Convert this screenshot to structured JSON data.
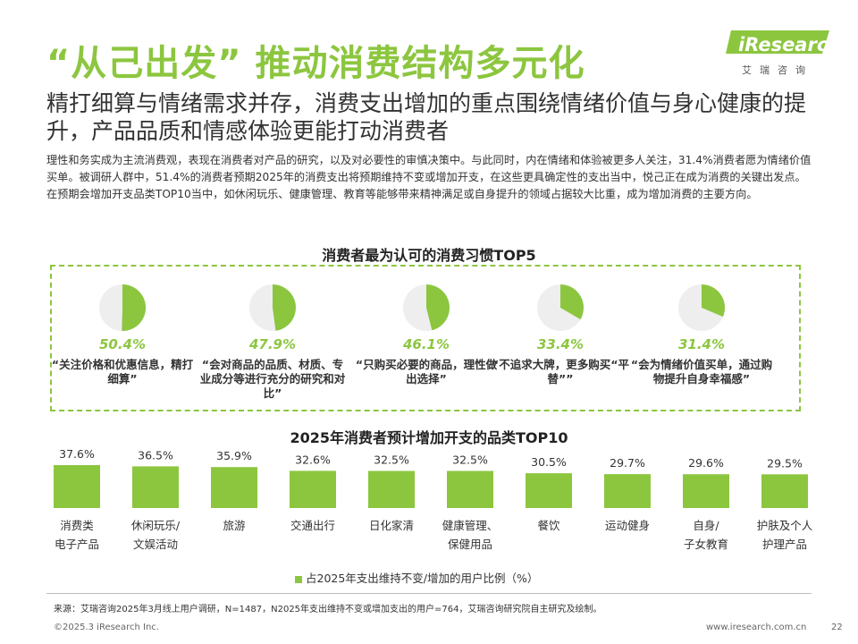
{
  "header": {
    "title": "“从己出发”  推动消费结构多元化",
    "logo_text": "iResearch",
    "logo_sub": "艾瑞咨询"
  },
  "subtitle": "精打细算与情绪需求并存，消费支出增加的重点围绕情绪价值与身心健康的提升，产品品质和情感体验更能打动消费者",
  "paragraph": "理性和务实成为主流消费观，表现在消费者对产品的研究，以及对必要性的审慎决策中。与此同时，内在情绪和体验被更多人关注，31.4%消费者愿为情绪价值买单。被调研人群中，51.4%的消费者预期2025年的消费支出将预期维持不变或增加开支，在这些更具确定性的支出当中，悦己正在成为消费的关键出发点。在预期会增加开支品类TOP10当中，如休闲玩乐、健康管理、教育等能够带来精神满足或自身提升的领域占据较大比重，成为增加消费的主要方向。",
  "habits": {
    "title": "消费者最为认可的消费习惯TOP5",
    "items": [
      {
        "value": 50.4,
        "pct": "50.4%",
        "label": "“关注价格和优惠信息，精打细算”"
      },
      {
        "value": 47.9,
        "pct": "47.9%",
        "label": "“会对商品的品质、材质、专业成分等进行充分的研究和对比”"
      },
      {
        "value": 46.1,
        "pct": "46.1%",
        "label": "“只购买必要的商品，理性做出选择”"
      },
      {
        "value": 33.4,
        "pct": "33.4%",
        "label": "“不追求大牌，更多购买“平替””"
      },
      {
        "value": 31.4,
        "pct": "31.4%",
        "label": "“会为情绪价值买单，通过购物提升自身幸福感”"
      }
    ]
  },
  "chart_data": {
    "type": "bar",
    "title": "2025年消费者预计增加开支的品类TOP10",
    "categories": [
      "消费类电子产品",
      "休闲玩乐/文娱活动",
      "旅游",
      "交通出行",
      "日化家清",
      "健康管理、保健用品",
      "餐饮",
      "运动健身",
      "自身/子女教育",
      "护肤及个人护理产品"
    ],
    "category_lines": [
      [
        "消费类",
        "电子产品"
      ],
      [
        "休闲玩乐/",
        "文娱活动"
      ],
      [
        "旅游"
      ],
      [
        "交通出行"
      ],
      [
        "日化家清"
      ],
      [
        "健康管理、",
        "保健用品"
      ],
      [
        "餐饮"
      ],
      [
        "运动健身"
      ],
      [
        "自身/",
        "子女教育"
      ],
      [
        "护肤及个人",
        "护理产品"
      ]
    ],
    "values": [
      37.6,
      36.5,
      35.9,
      32.6,
      32.5,
      32.5,
      30.5,
      29.7,
      29.6,
      29.5
    ],
    "value_labels": [
      "37.6%",
      "36.5%",
      "35.9%",
      "32.6%",
      "32.5%",
      "32.5%",
      "30.5%",
      "29.7%",
      "29.6%",
      "29.5%"
    ],
    "series": [
      {
        "name": "占2025年支出维持不变/增加的用户比例（%）",
        "values": [
          37.6,
          36.5,
          35.9,
          32.6,
          32.5,
          32.5,
          30.5,
          29.7,
          29.6,
          29.5
        ]
      }
    ],
    "color": "#8cc63f",
    "legend": "bottom"
  },
  "footer": {
    "source": "来源：艾瑞咨询2025年3月线上用户调研，N=1487，N2025年支出维持不变或增加支出的用户=764，艾瑞咨询研究院自主研究及绘制。",
    "copyright": "©2025.3 iResearch Inc.",
    "url": "www.iresearch.com.cn",
    "page": "22"
  },
  "colors": {
    "accent": "#8cc63f",
    "pie_bg": "#eeeeee"
  }
}
